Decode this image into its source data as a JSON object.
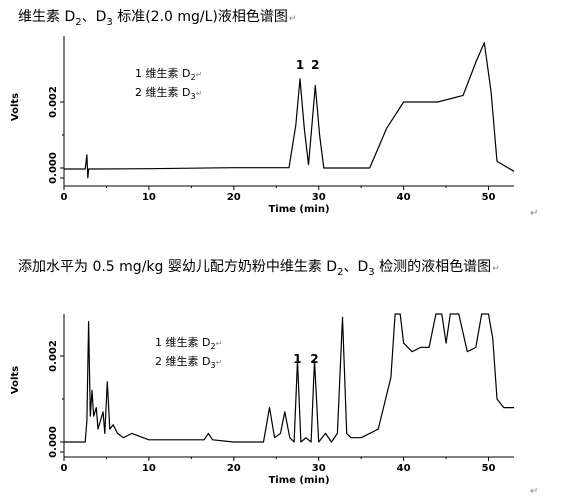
{
  "figure1": {
    "caption_parts": [
      "维生素 D",
      "2",
      "、D",
      "3",
      " 标准(2.0 mg/L)液相色谱图"
    ],
    "chart_data": {
      "type": "line",
      "xlabel": "Time (min)",
      "ylabel": "Volts",
      "xlim": [
        0,
        53
      ],
      "x_ticks": [
        "0",
        "10",
        "20",
        "30",
        "40",
        "50"
      ],
      "y_ticks": [
        "0.000",
        "0.002"
      ],
      "legend": [
        {
          "num": "1",
          "name": "维生素 D",
          "sub": "2"
        },
        {
          "num": "2",
          "name": "维生素 D",
          "sub": "3"
        }
      ],
      "peak_labels": [
        {
          "label": "1",
          "time": 27.8
        },
        {
          "label": "2",
          "time": 29.6
        }
      ],
      "series": [
        {
          "x": [
            0,
            2.5,
            2.7,
            2.8,
            2.9,
            3.2,
            10,
            20,
            26.5,
            27.3,
            27.8,
            28.3,
            28.8,
            29.1,
            29.6,
            30.1,
            30.6,
            36,
            38,
            40,
            44,
            47,
            48.5,
            49.5,
            50.3,
            51,
            53
          ],
          "y": [
            -3e-05,
            -3e-05,
            0.0004,
            -0.0003,
            -3e-05,
            -3e-05,
            -2e-05,
            1e-05,
            1e-05,
            0.0013,
            0.0027,
            0.0012,
            0.0001,
            0.001,
            0.0025,
            0.001,
            0.0,
            0.0,
            0.0012,
            0.002,
            0.002,
            0.0022,
            0.0032,
            0.0038,
            0.0023,
            0.0002,
            -0.0001
          ]
        }
      ]
    }
  },
  "figure2": {
    "caption_parts": [
      "添加水平为 0.5 mg/kg  婴幼儿配方奶粉中维生素 D",
      "2",
      "、D",
      "3",
      " 检测的液相色谱图"
    ],
    "chart_data": {
      "type": "line",
      "xlabel": "Time (min)",
      "ylabel": "Volts",
      "xlim": [
        0,
        53
      ],
      "x_ticks": [
        "0",
        "10",
        "20",
        "30",
        "40",
        "50"
      ],
      "y_ticks": [
        "0.000",
        "0.002"
      ],
      "legend": [
        {
          "num": "1",
          "name": "维生素 D",
          "sub": "2"
        },
        {
          "num": "2",
          "name": "维生素 D",
          "sub": "3"
        }
      ],
      "peak_labels": [
        {
          "label": "1",
          "time": 27.5
        },
        {
          "label": "2",
          "time": 29.5
        }
      ],
      "series": [
        {
          "x": [
            0,
            2.5,
            2.7,
            2.9,
            3.1,
            3.3,
            3.5,
            3.8,
            4.0,
            4.3,
            4.6,
            4.8,
            5.1,
            5.4,
            5.8,
            6.3,
            7,
            8,
            10,
            16.5,
            17,
            17.5,
            20,
            23.5,
            24.2,
            24.8,
            25.5,
            26,
            26.6,
            27.1,
            27.5,
            27.9,
            28.5,
            29.1,
            29.5,
            30,
            30.8,
            31.5,
            32.2,
            32.8,
            33.3,
            33.8,
            35,
            37,
            38.5,
            39,
            39.6,
            40,
            41,
            42,
            43,
            43.8,
            44.5,
            45,
            45.5,
            46.5,
            47.5,
            48.5,
            49.2,
            50,
            50.5,
            51,
            51.8,
            52.5,
            53
          ],
          "y": [
            0,
            0,
            0.0005,
            0.0028,
            0.0006,
            0.0012,
            0.0006,
            0.0008,
            0.0003,
            0.0005,
            0.0007,
            0.0002,
            0.0014,
            0.0003,
            0.0004,
            0.0002,
            0.0001,
            0.0002,
            5e-05,
            5e-05,
            0.0002,
            5e-05,
            0.0,
            0.0,
            0.0008,
            0.0001,
            0.0002,
            0.0007,
            0.0001,
            0.0,
            0.0019,
            0.0,
            0.0001,
            0.0,
            0.0019,
            0.0,
            0.0002,
            0.0,
            0.0002,
            0.0029,
            0.0002,
            0.0001,
            0.0001,
            0.0003,
            0.0015,
            0.003,
            0.003,
            0.0023,
            0.0021,
            0.0022,
            0.0022,
            0.003,
            0.003,
            0.0023,
            0.003,
            0.003,
            0.0021,
            0.0022,
            0.003,
            0.003,
            0.0024,
            0.001,
            0.0008,
            0.0008,
            0.0008
          ]
        }
      ]
    }
  }
}
